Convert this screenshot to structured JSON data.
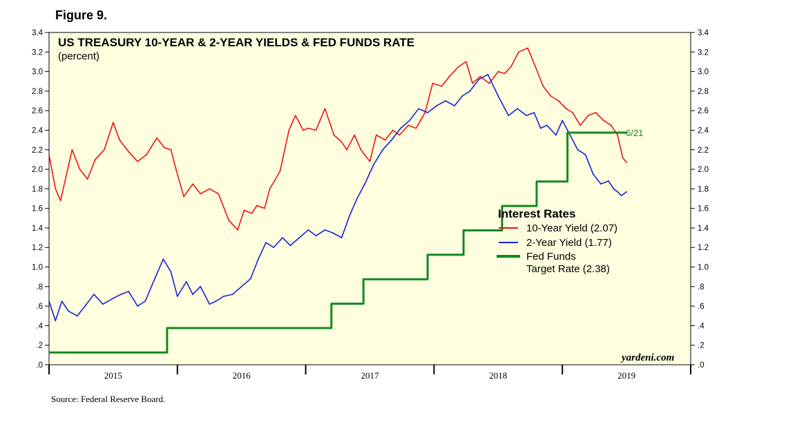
{
  "figure_label": "Figure 9.",
  "source": "Source: Federal Reserve Board.",
  "colors": {
    "background": "#FFFFE0",
    "ten_year": "#EE1111",
    "two_year": "#1122DD",
    "fed_funds": "#118822",
    "annotation": "#118822"
  },
  "chart_data": {
    "type": "line",
    "title": "US TREASURY 10-YEAR & 2-YEAR YIELDS & FED FUNDS RATE",
    "subtitle": "(percent)",
    "brand": "yardeni.com",
    "annotation": "6/21",
    "ylim": [
      0,
      3.4
    ],
    "xlim": [
      2014.5,
      2019.5
    ],
    "y_ticks": [
      {
        "value": 0.0,
        "label": ".0"
      },
      {
        "value": 0.2,
        "label": ".2"
      },
      {
        "value": 0.4,
        "label": ".4"
      },
      {
        "value": 0.6,
        "label": ".6"
      },
      {
        "value": 0.8,
        "label": ".8"
      },
      {
        "value": 1.0,
        "label": "1.0"
      },
      {
        "value": 1.2,
        "label": "1.2"
      },
      {
        "value": 1.4,
        "label": "1.4"
      },
      {
        "value": 1.6,
        "label": "1.6"
      },
      {
        "value": 1.8,
        "label": "1.8"
      },
      {
        "value": 2.0,
        "label": "2.0"
      },
      {
        "value": 2.2,
        "label": "2.2"
      },
      {
        "value": 2.4,
        "label": "2.4"
      },
      {
        "value": 2.6,
        "label": "2.6"
      },
      {
        "value": 2.8,
        "label": "2.8"
      },
      {
        "value": 3.0,
        "label": "3.0"
      },
      {
        "value": 3.2,
        "label": "3.2"
      },
      {
        "value": 3.4,
        "label": "3.4"
      }
    ],
    "x_ticks": [
      2014.5,
      2015.5,
      2016.5,
      2017.5,
      2018.5,
      2019.5
    ],
    "x_labels": [
      {
        "value": 2015.0,
        "label": "2015"
      },
      {
        "value": 2016.0,
        "label": "2016"
      },
      {
        "value": 2017.0,
        "label": "2017"
      },
      {
        "value": 2018.0,
        "label": "2018"
      },
      {
        "value": 2019.0,
        "label": "2019"
      }
    ],
    "legend": {
      "title": "Interest Rates",
      "items": [
        {
          "label": "10-Year Yield (2.07)",
          "series": "ten_year"
        },
        {
          "label": "2-Year Yield (1.77)",
          "series": "two_year"
        },
        {
          "label": "Fed Funds",
          "label2": "Target Rate (2.38)",
          "series": "fed_funds"
        }
      ]
    },
    "series": [
      {
        "name": "10-Year Yield",
        "key": "ten_year",
        "x": [
          2014.5,
          2014.55,
          2014.59,
          2014.68,
          2014.74,
          2014.8,
          2014.86,
          2014.93,
          2015.0,
          2015.05,
          2015.12,
          2015.19,
          2015.26,
          2015.34,
          2015.4,
          2015.45,
          2015.49,
          2015.55,
          2015.62,
          2015.68,
          2015.75,
          2015.82,
          2015.9,
          2015.97,
          2016.02,
          2016.08,
          2016.12,
          2016.18,
          2016.22,
          2016.3,
          2016.37,
          2016.42,
          2016.45,
          2016.48,
          2016.52,
          2016.58,
          2016.65,
          2016.72,
          2016.78,
          2016.82,
          2016.88,
          2016.93,
          2017.0,
          2017.05,
          2017.12,
          2017.18,
          2017.23,
          2017.3,
          2017.36,
          2017.43,
          2017.49,
          2017.56,
          2017.62,
          2017.69,
          2017.75,
          2017.8,
          2017.86,
          2017.93,
          2018.0,
          2018.05,
          2018.1,
          2018.16,
          2018.23,
          2018.29,
          2018.35,
          2018.41,
          2018.47,
          2018.53,
          2018.58,
          2018.64,
          2018.7,
          2018.76,
          2018.82,
          2018.88,
          2018.93,
          2018.97,
          2019.0
        ],
        "values": [
          2.15,
          1.8,
          1.68,
          2.2,
          2.0,
          1.9,
          2.1,
          2.2,
          2.48,
          2.3,
          2.18,
          2.08,
          2.15,
          2.32,
          2.22,
          2.2,
          2.0,
          1.72,
          1.85,
          1.75,
          1.8,
          1.75,
          1.48,
          1.38,
          1.58,
          1.55,
          1.63,
          1.6,
          1.8,
          1.98,
          2.4,
          2.55,
          2.48,
          2.4,
          2.42,
          2.4,
          2.62,
          2.35,
          2.28,
          2.2,
          2.35,
          2.2,
          2.08,
          2.35,
          2.3,
          2.4,
          2.35,
          2.45,
          2.42,
          2.58,
          2.88,
          2.85,
          2.95,
          3.05,
          3.1,
          2.88,
          2.95,
          2.88,
          3.0,
          2.98,
          3.05,
          3.2,
          3.24,
          3.05,
          2.85,
          2.75,
          2.7,
          2.62,
          2.58,
          2.45,
          2.55,
          2.58,
          2.5,
          2.45,
          2.35,
          2.12,
          2.07
        ]
      },
      {
        "name": "2-Year Yield",
        "key": "two_year",
        "x": [
          2014.5,
          2014.55,
          2014.6,
          2014.65,
          2014.72,
          2014.78,
          2014.85,
          2014.92,
          2015.0,
          2015.06,
          2015.12,
          2015.19,
          2015.25,
          2015.33,
          2015.39,
          2015.45,
          2015.5,
          2015.57,
          2015.62,
          2015.68,
          2015.75,
          2015.8,
          2015.86,
          2015.93,
          2016.0,
          2016.07,
          2016.13,
          2016.19,
          2016.25,
          2016.32,
          2016.38,
          2016.45,
          2016.52,
          2016.58,
          2016.65,
          2016.71,
          2016.78,
          2016.84,
          2016.9,
          2016.96,
          2017.03,
          2017.1,
          2017.17,
          2017.24,
          2017.31,
          2017.38,
          2017.45,
          2017.52,
          2017.59,
          2017.66,
          2017.72,
          2017.78,
          2017.85,
          2017.92,
          2018.0,
          2018.08,
          2018.15,
          2018.22,
          2018.28,
          2018.33,
          2018.38,
          2018.45,
          2018.5,
          2018.56,
          2018.62,
          2018.68,
          2018.74,
          2018.8,
          2018.86,
          2018.9,
          2018.93,
          2018.96,
          2019.0
        ],
        "values": [
          0.65,
          0.45,
          0.65,
          0.55,
          0.5,
          0.6,
          0.72,
          0.62,
          0.68,
          0.72,
          0.75,
          0.6,
          0.65,
          0.9,
          1.08,
          0.95,
          0.7,
          0.85,
          0.72,
          0.8,
          0.62,
          0.65,
          0.7,
          0.72,
          0.8,
          0.88,
          1.08,
          1.25,
          1.2,
          1.3,
          1.22,
          1.3,
          1.38,
          1.32,
          1.38,
          1.35,
          1.3,
          1.52,
          1.7,
          1.85,
          2.05,
          2.2,
          2.3,
          2.42,
          2.5,
          2.62,
          2.58,
          2.65,
          2.7,
          2.65,
          2.75,
          2.8,
          2.92,
          2.97,
          2.75,
          2.55,
          2.62,
          2.55,
          2.58,
          2.42,
          2.45,
          2.35,
          2.5,
          2.35,
          2.2,
          2.15,
          1.95,
          1.85,
          1.88,
          1.8,
          1.77,
          1.73,
          1.77
        ]
      },
      {
        "name": "Fed Funds Target Rate",
        "key": "fed_funds",
        "step": true,
        "x": [
          2014.5,
          2015.42,
          2016.43,
          2016.7,
          2016.95,
          2017.45,
          2017.73,
          2018.03,
          2018.3,
          2018.54,
          2019.0
        ],
        "values": [
          0.125,
          0.375,
          0.375,
          0.625,
          0.875,
          1.125,
          1.375,
          1.625,
          1.875,
          2.375,
          2.375
        ]
      }
    ]
  }
}
